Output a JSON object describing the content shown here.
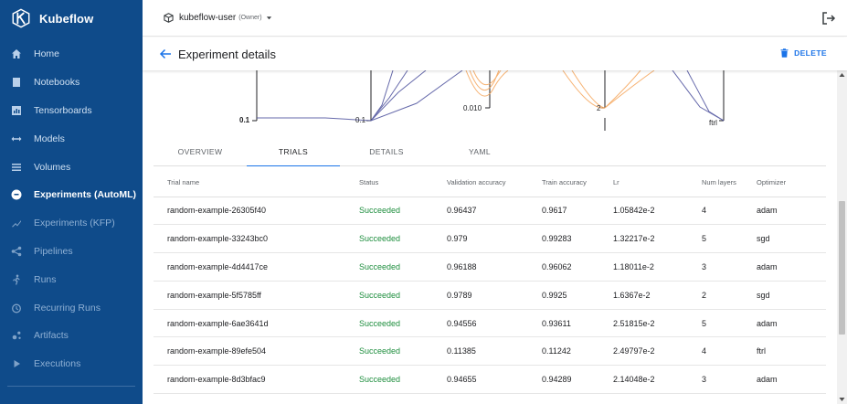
{
  "brand": {
    "name": "Kubeflow"
  },
  "nav": [
    {
      "label": "Home",
      "icon": "home-icon"
    },
    {
      "label": "Notebooks",
      "icon": "notebook-icon"
    },
    {
      "label": "Tensorboards",
      "icon": "tensorboard-icon"
    },
    {
      "label": "Models",
      "icon": "models-icon"
    },
    {
      "label": "Volumes",
      "icon": "volumes-icon"
    },
    {
      "label": "Experiments (AutoML)",
      "icon": "experiments-automl-icon",
      "active": true
    },
    {
      "label": "Experiments (KFP)",
      "icon": "experiments-kfp-icon"
    },
    {
      "label": "Pipelines",
      "icon": "pipelines-icon"
    },
    {
      "label": "Runs",
      "icon": "runs-icon"
    },
    {
      "label": "Recurring Runs",
      "icon": "recurring-runs-icon"
    },
    {
      "label": "Artifacts",
      "icon": "artifacts-icon"
    },
    {
      "label": "Executions",
      "icon": "executions-icon"
    }
  ],
  "topbar": {
    "namespace": "kubeflow-user",
    "role": "(Owner)"
  },
  "header": {
    "title": "Experiment details",
    "delete_label": "DELETE"
  },
  "chart_labels": {
    "a": "0.1",
    "b": "0.1",
    "c": "0.010",
    "d": "2",
    "e": "ftrl"
  },
  "tabs": [
    "OVERVIEW",
    "TRIALS",
    "DETAILS",
    "YAML"
  ],
  "active_tab": "TRIALS",
  "table": {
    "columns": [
      "Trial name",
      "Status",
      "Validation accuracy",
      "Train accuracy",
      "Lr",
      "Num layers",
      "Optimizer"
    ],
    "rows": [
      [
        "random-example-26305f40",
        "Succeeded",
        "0.96437",
        "0.9617",
        "1.05842e-2",
        "4",
        "adam"
      ],
      [
        "random-example-33243bc0",
        "Succeeded",
        "0.979",
        "0.99283",
        "1.32217e-2",
        "5",
        "sgd"
      ],
      [
        "random-example-4d4417ce",
        "Succeeded",
        "0.96188",
        "0.96062",
        "1.18011e-2",
        "3",
        "adam"
      ],
      [
        "random-example-5f5785ff",
        "Succeeded",
        "0.9789",
        "0.9925",
        "1.6367e-2",
        "2",
        "sgd"
      ],
      [
        "random-example-6ae3641d",
        "Succeeded",
        "0.94556",
        "0.93611",
        "2.51815e-2",
        "5",
        "adam"
      ],
      [
        "random-example-89efe504",
        "Succeeded",
        "0.11385",
        "0.11242",
        "2.49797e-2",
        "4",
        "ftrl"
      ],
      [
        "random-example-8d3bfac9",
        "Succeeded",
        "0.94655",
        "0.94289",
        "2.14048e-2",
        "3",
        "adam"
      ]
    ]
  },
  "colors": {
    "sidebar": "#0f4b8a",
    "accent": "#1a73e8",
    "success": "#1e8e3e",
    "line_purple": "#4b4f9c",
    "line_orange": "#f5a55a"
  }
}
